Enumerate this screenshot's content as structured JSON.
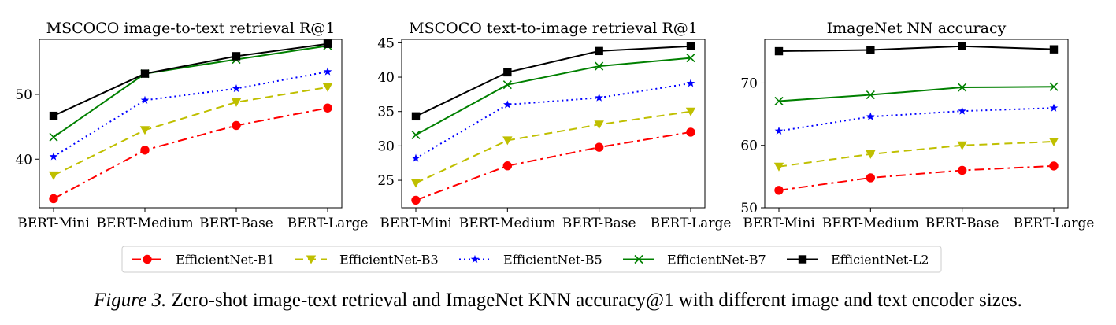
{
  "chart_data": [
    {
      "type": "line",
      "title": "MSCOCO image-to-text retrieval R@1",
      "xlabel": "",
      "ylabel": "",
      "categories": [
        "BERT-Mini",
        "BERT-Medium",
        "BERT-Base",
        "BERT-Large"
      ],
      "ylim": [
        32.5,
        58.5
      ],
      "yticks": [
        40,
        50
      ],
      "grid": false,
      "series": [
        {
          "name": "EfficientNet-B1",
          "values": [
            33.9,
            41.4,
            45.2,
            47.9
          ]
        },
        {
          "name": "EfficientNet-B3",
          "values": [
            37.5,
            44.5,
            48.8,
            51.1
          ]
        },
        {
          "name": "EfficientNet-B5",
          "values": [
            40.4,
            49.1,
            50.9,
            53.5
          ]
        },
        {
          "name": "EfficientNet-B7",
          "values": [
            43.4,
            53.2,
            55.4,
            57.5
          ]
        },
        {
          "name": "EfficientNet-L2",
          "values": [
            46.7,
            53.2,
            55.9,
            57.8
          ]
        }
      ]
    },
    {
      "type": "line",
      "title": "MSCOCO text-to-image retrieval R@1",
      "xlabel": "",
      "ylabel": "",
      "categories": [
        "BERT-Mini",
        "BERT-Medium",
        "BERT-Base",
        "BERT-Large"
      ],
      "ylim": [
        21.0,
        45.5
      ],
      "yticks": [
        25,
        30,
        35,
        40,
        45
      ],
      "grid": false,
      "series": [
        {
          "name": "EfficientNet-B1",
          "values": [
            22.1,
            27.1,
            29.8,
            32.0
          ]
        },
        {
          "name": "EfficientNet-B3",
          "values": [
            24.6,
            30.8,
            33.1,
            35.0
          ]
        },
        {
          "name": "EfficientNet-B5",
          "values": [
            28.2,
            36.0,
            37.0,
            39.1
          ]
        },
        {
          "name": "EfficientNet-B7",
          "values": [
            31.6,
            38.9,
            41.6,
            42.8
          ]
        },
        {
          "name": "EfficientNet-L2",
          "values": [
            34.3,
            40.7,
            43.8,
            44.5
          ]
        }
      ]
    },
    {
      "type": "line",
      "title": "ImageNet NN accuracy",
      "xlabel": "",
      "ylabel": "",
      "categories": [
        "BERT-Mini",
        "BERT-Medium",
        "BERT-Base",
        "BERT-Large"
      ],
      "ylim": [
        50.0,
        77.0
      ],
      "yticks": [
        50,
        60,
        70
      ],
      "grid": false,
      "series": [
        {
          "name": "EfficientNet-B1",
          "values": [
            52.8,
            54.8,
            56.0,
            56.7
          ]
        },
        {
          "name": "EfficientNet-B3",
          "values": [
            56.6,
            58.6,
            60.0,
            60.6
          ]
        },
        {
          "name": "EfficientNet-B5",
          "values": [
            62.3,
            64.6,
            65.5,
            66.0
          ]
        },
        {
          "name": "EfficientNet-B7",
          "values": [
            67.1,
            68.1,
            69.3,
            69.4
          ]
        },
        {
          "name": "EfficientNet-L2",
          "values": [
            75.1,
            75.3,
            75.9,
            75.4
          ]
        }
      ]
    }
  ],
  "styles": [
    {
      "name": "EfficientNet-B1",
      "color": "#ff0000",
      "dash": "dashdot",
      "marker": "circle"
    },
    {
      "name": "EfficientNet-B3",
      "color": "#bfbf00",
      "dash": "dashed",
      "marker": "triangle-down"
    },
    {
      "name": "EfficientNet-B5",
      "color": "#0000ff",
      "dash": "dotted",
      "marker": "star"
    },
    {
      "name": "EfficientNet-B7",
      "color": "#008000",
      "dash": "solid",
      "marker": "x"
    },
    {
      "name": "EfficientNet-L2",
      "color": "#000000",
      "dash": "solid",
      "marker": "square"
    }
  ],
  "legend": {
    "placement": "bottom-center",
    "entries": [
      "EfficientNet-B1",
      "EfficientNet-B3",
      "EfficientNet-B5",
      "EfficientNet-B7",
      "EfficientNet-L2"
    ]
  },
  "caption": {
    "lead": "Figure 3.",
    "text": "Zero-shot image-text retrieval and ImageNet KNN accuracy@1 with different image and text encoder sizes."
  }
}
